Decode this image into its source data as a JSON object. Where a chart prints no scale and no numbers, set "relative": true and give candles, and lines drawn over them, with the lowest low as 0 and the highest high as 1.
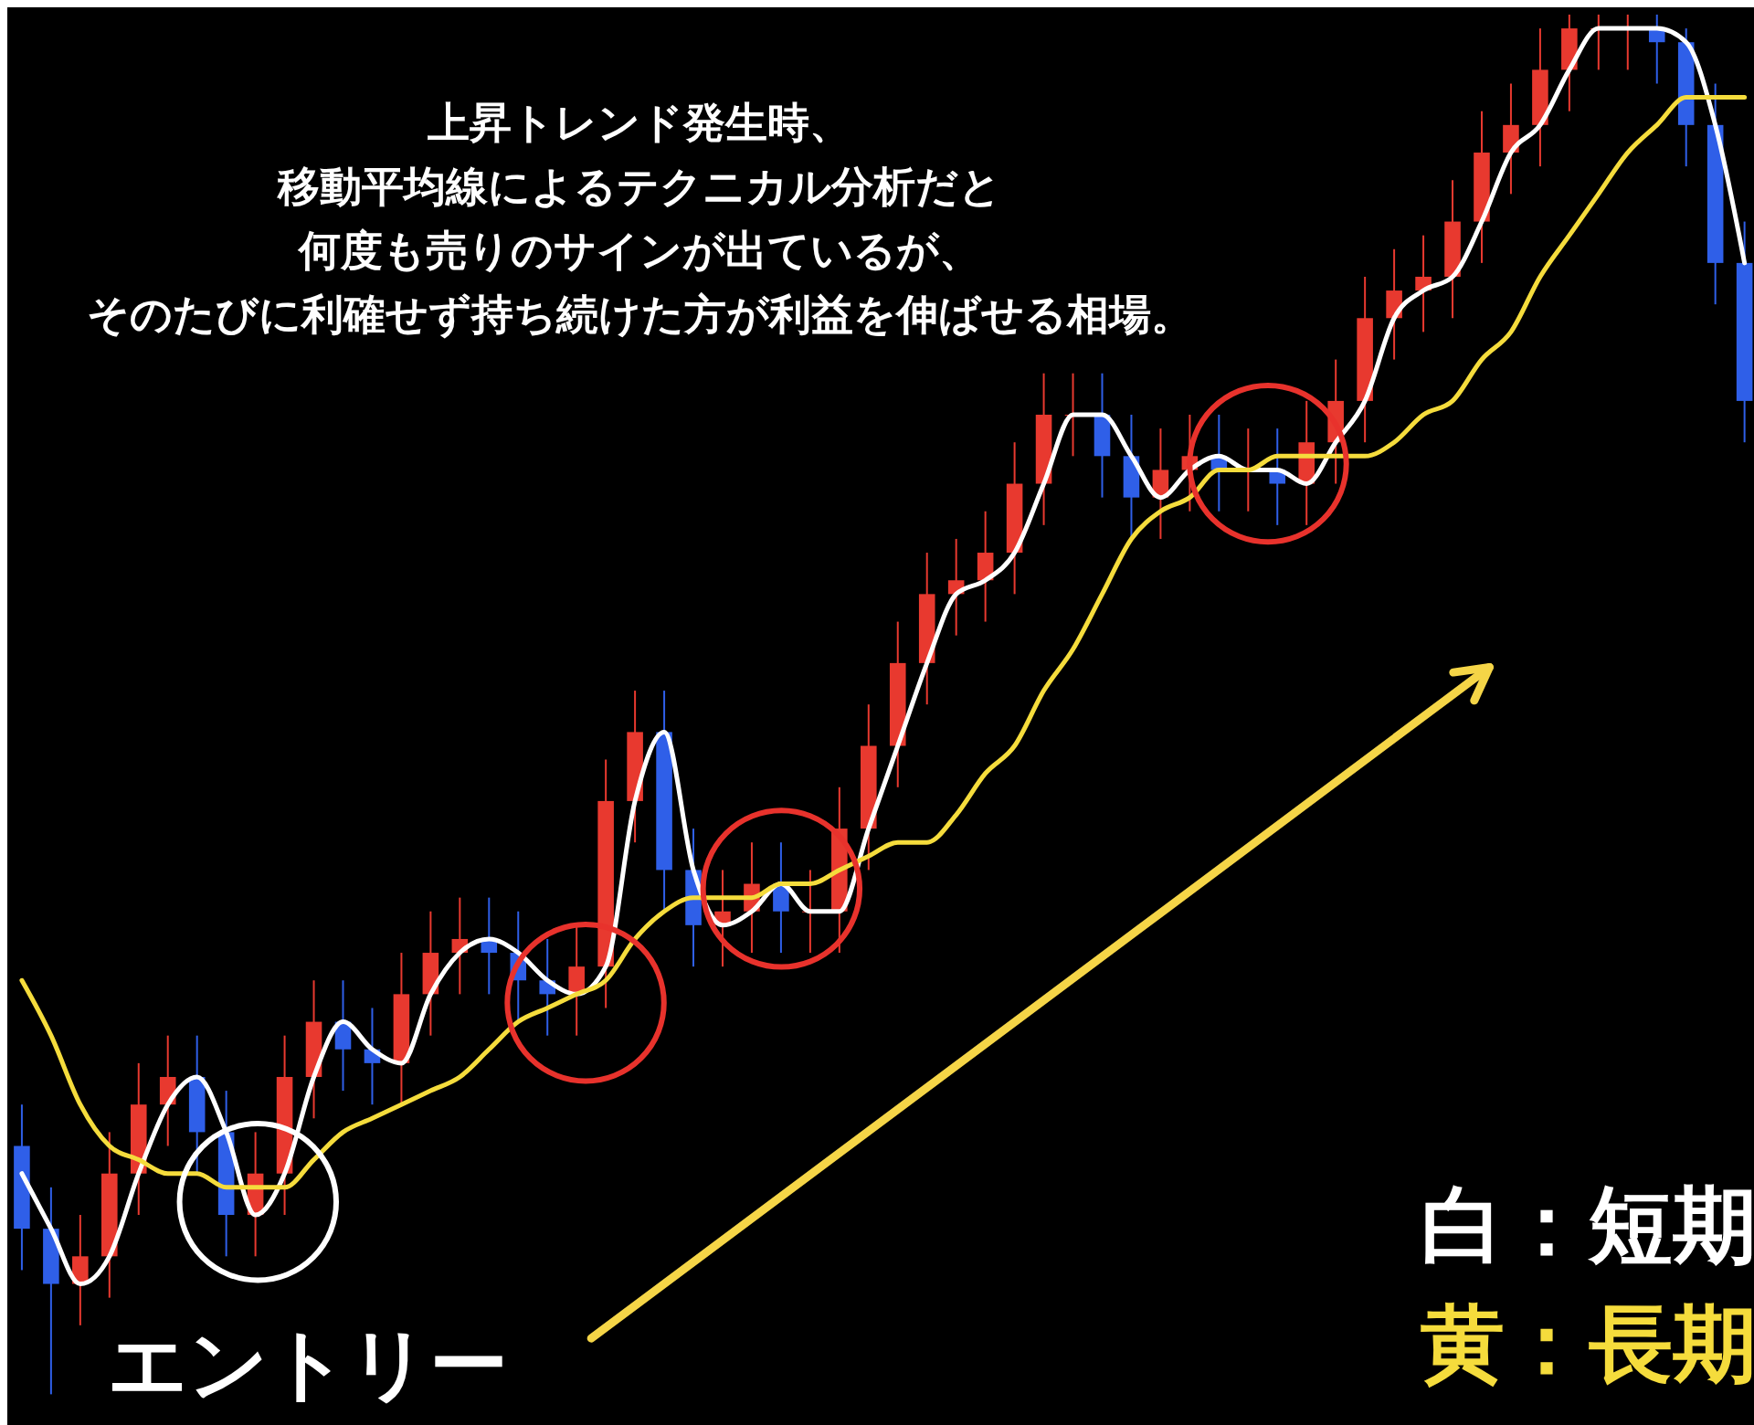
{
  "chart_data": {
    "type": "candlestick",
    "relative": true,
    "title": "上昇トレンド発生時、",
    "annotations": [
      "移動平均線によるテクニカル分析だと",
      "何度も売りのサインが出ているが、",
      "そのたびに利確せず持ち続けた方が利益を伸ばせる相場。",
      "エントリー"
    ],
    "legend": "bottom right",
    "categories": [
      null,
      null,
      null,
      null,
      null,
      null,
      null,
      null,
      null,
      null,
      null,
      null,
      null,
      null,
      null,
      null,
      null,
      null,
      null,
      null,
      null,
      null,
      null,
      null,
      null,
      null,
      null,
      null,
      null,
      null,
      null,
      null,
      null,
      null,
      null,
      null,
      null,
      null,
      null,
      null,
      null,
      null,
      null,
      null,
      null,
      null,
      null,
      null,
      null,
      null,
      null,
      null,
      null,
      null,
      null,
      null,
      null,
      null,
      null,
      null
    ],
    "ohlc": [
      [
        0.18,
        0.21,
        0.09,
        0.12
      ],
      [
        0.12,
        0.15,
        0.0,
        0.08
      ],
      [
        0.08,
        0.13,
        0.05,
        0.1
      ],
      [
        0.1,
        0.19,
        0.07,
        0.16
      ],
      [
        0.16,
        0.24,
        0.13,
        0.21
      ],
      [
        0.21,
        0.26,
        0.18,
        0.23
      ],
      [
        0.23,
        0.26,
        0.16,
        0.19
      ],
      [
        0.19,
        0.22,
        0.1,
        0.13
      ],
      [
        0.13,
        0.19,
        0.1,
        0.16
      ],
      [
        0.16,
        0.26,
        0.13,
        0.23
      ],
      [
        0.23,
        0.3,
        0.2,
        0.27
      ],
      [
        0.27,
        0.3,
        0.22,
        0.25
      ],
      [
        0.25,
        0.28,
        0.21,
        0.24
      ],
      [
        0.24,
        0.32,
        0.21,
        0.29
      ],
      [
        0.29,
        0.35,
        0.26,
        0.32
      ],
      [
        0.32,
        0.36,
        0.29,
        0.33
      ],
      [
        0.33,
        0.36,
        0.29,
        0.32
      ],
      [
        0.32,
        0.35,
        0.27,
        0.3
      ],
      [
        0.3,
        0.33,
        0.26,
        0.29
      ],
      [
        0.29,
        0.34,
        0.26,
        0.31
      ],
      [
        0.31,
        0.46,
        0.28,
        0.43
      ],
      [
        0.43,
        0.51,
        0.4,
        0.48
      ],
      [
        0.48,
        0.51,
        0.35,
        0.38
      ],
      [
        0.38,
        0.41,
        0.31,
        0.34
      ],
      [
        0.34,
        0.38,
        0.31,
        0.35
      ],
      [
        0.35,
        0.4,
        0.32,
        0.37
      ],
      [
        0.37,
        0.4,
        0.32,
        0.35
      ],
      [
        0.35,
        0.38,
        0.32,
        0.35
      ],
      [
        0.35,
        0.44,
        0.32,
        0.41
      ],
      [
        0.41,
        0.5,
        0.38,
        0.47
      ],
      [
        0.47,
        0.56,
        0.44,
        0.53
      ],
      [
        0.53,
        0.61,
        0.5,
        0.58
      ],
      [
        0.58,
        0.62,
        0.55,
        0.59
      ],
      [
        0.59,
        0.64,
        0.56,
        0.61
      ],
      [
        0.61,
        0.69,
        0.58,
        0.66
      ],
      [
        0.66,
        0.74,
        0.63,
        0.71
      ],
      [
        0.71,
        0.74,
        0.68,
        0.71
      ],
      [
        0.71,
        0.74,
        0.65,
        0.68
      ],
      [
        0.68,
        0.71,
        0.62,
        0.65
      ],
      [
        0.65,
        0.7,
        0.62,
        0.67
      ],
      [
        0.67,
        0.71,
        0.64,
        0.68
      ],
      [
        0.68,
        0.71,
        0.64,
        0.67
      ],
      [
        0.67,
        0.7,
        0.64,
        0.67
      ],
      [
        0.67,
        0.7,
        0.63,
        0.66
      ],
      [
        0.66,
        0.72,
        0.63,
        0.69
      ],
      [
        0.69,
        0.75,
        0.66,
        0.72
      ],
      [
        0.72,
        0.81,
        0.69,
        0.78
      ],
      [
        0.78,
        0.83,
        0.75,
        0.8
      ],
      [
        0.8,
        0.84,
        0.77,
        0.81
      ],
      [
        0.81,
        0.88,
        0.78,
        0.85
      ],
      [
        0.85,
        0.93,
        0.82,
        0.9
      ],
      [
        0.9,
        0.95,
        0.87,
        0.92
      ],
      [
        0.92,
        0.99,
        0.89,
        0.96
      ],
      [
        0.96,
        1.0,
        0.93,
        0.99
      ],
      [
        0.99,
        1.0,
        0.96,
        0.99
      ],
      [
        0.99,
        1.0,
        0.96,
        0.99
      ],
      [
        0.99,
        1.0,
        0.95,
        0.98
      ],
      [
        0.98,
        0.99,
        0.89,
        0.92
      ],
      [
        0.92,
        0.95,
        0.79,
        0.82
      ],
      [
        0.82,
        0.85,
        0.69,
        0.72
      ]
    ],
    "colors": [
      "#2f5fe8",
      "#2f5fe8",
      "#e8392f",
      "#e8392f",
      "#e8392f",
      "#e8392f",
      "#2f5fe8",
      "#2f5fe8",
      "#e8392f",
      "#e8392f",
      "#e8392f",
      "#2f5fe8",
      "#2f5fe8",
      "#e8392f",
      "#e8392f",
      "#e8392f",
      "#2f5fe8",
      "#2f5fe8",
      "#2f5fe8",
      "#e8392f",
      "#e8392f",
      "#e8392f",
      "#2f5fe8",
      "#2f5fe8",
      "#e8392f",
      "#e8392f",
      "#2f5fe8",
      "#e8392f",
      "#e8392f",
      "#e8392f",
      "#e8392f",
      "#e8392f",
      "#e8392f",
      "#e8392f",
      "#e8392f",
      "#e8392f",
      "#e8392f",
      "#2f5fe8",
      "#2f5fe8",
      "#e8392f",
      "#e8392f",
      "#2f5fe8",
      "#e8392f",
      "#2f5fe8",
      "#e8392f",
      "#e8392f",
      "#e8392f",
      "#e8392f",
      "#e8392f",
      "#e8392f",
      "#e8392f",
      "#e8392f",
      "#e8392f",
      "#e8392f",
      "#e8392f",
      "#e8392f",
      "#2f5fe8",
      "#2f5fe8",
      "#2f5fe8",
      "#2f5fe8"
    ],
    "series": [
      {
        "type": "line",
        "name": "白：短期",
        "color": "#ffffff",
        "values": [
          0.16,
          0.12,
          0.08,
          0.1,
          0.16,
          0.21,
          0.23,
          0.19,
          0.13,
          0.16,
          0.23,
          0.27,
          0.25,
          0.24,
          0.29,
          0.32,
          0.33,
          0.32,
          0.3,
          0.29,
          0.31,
          0.43,
          0.48,
          0.38,
          0.34,
          0.35,
          0.37,
          0.35,
          0.35,
          0.41,
          0.47,
          0.53,
          0.58,
          0.59,
          0.61,
          0.66,
          0.71,
          0.71,
          0.68,
          0.65,
          0.67,
          0.68,
          0.67,
          0.67,
          0.66,
          0.69,
          0.72,
          0.78,
          0.8,
          0.81,
          0.85,
          0.9,
          0.92,
          0.96,
          0.99,
          0.99,
          0.99,
          0.98,
          0.92,
          0.82
        ]
      },
      {
        "type": "line",
        "name": "黄：長期",
        "color": "#f5dc3c",
        "values": [
          0.3,
          0.26,
          0.21,
          0.18,
          0.17,
          0.16,
          0.16,
          0.15,
          0.15,
          0.15,
          0.17,
          0.19,
          0.2,
          0.21,
          0.22,
          0.23,
          0.25,
          0.27,
          0.28,
          0.29,
          0.3,
          0.33,
          0.35,
          0.36,
          0.36,
          0.36,
          0.37,
          0.37,
          0.38,
          0.39,
          0.4,
          0.4,
          0.42,
          0.45,
          0.47,
          0.51,
          0.54,
          0.58,
          0.62,
          0.64,
          0.65,
          0.67,
          0.67,
          0.68,
          0.68,
          0.68,
          0.68,
          0.69,
          0.71,
          0.72,
          0.75,
          0.77,
          0.81,
          0.84,
          0.87,
          0.9,
          0.92,
          0.94,
          0.94,
          0.94
        ]
      }
    ]
  }
}
